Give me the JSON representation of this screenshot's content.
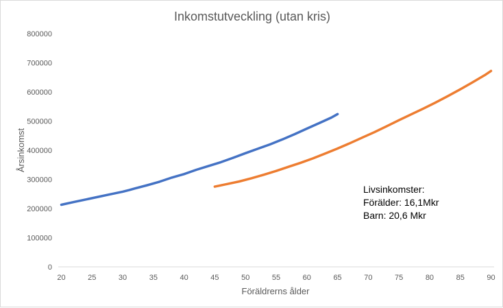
{
  "chart_data": {
    "type": "line",
    "title": "Inkomstutveckling (utan kris)",
    "xlabel": "Föräldrerns ålder",
    "ylabel": "Årsinkomst",
    "xlim": [
      19.5,
      90.5
    ],
    "ylim": [
      0,
      800000
    ],
    "x_ticks": [
      20,
      25,
      30,
      35,
      40,
      45,
      50,
      55,
      60,
      65,
      70,
      75,
      80,
      85,
      90
    ],
    "y_ticks": [
      0,
      100000,
      200000,
      300000,
      400000,
      500000,
      600000,
      700000,
      800000
    ],
    "grid": "none",
    "legend": "none",
    "series": [
      {
        "color": "#4472c4",
        "x": [
          20,
          22,
          24,
          26,
          28,
          30,
          31,
          32,
          34,
          36,
          38,
          40,
          42,
          44,
          46,
          48,
          50,
          52,
          54,
          56,
          58,
          60,
          62,
          64,
          65
        ],
        "y": [
          213000,
          222000,
          231000,
          240000,
          249000,
          258000,
          263000,
          269000,
          280000,
          292000,
          306000,
          318000,
          333000,
          346000,
          359000,
          374000,
          390000,
          405000,
          420000,
          437000,
          455000,
          474000,
          493000,
          512000,
          524000
        ]
      },
      {
        "color": "#ed7d31",
        "x": [
          45,
          47,
          49,
          51,
          53,
          55,
          57,
          59,
          61,
          63,
          65,
          67,
          69,
          71,
          73,
          75,
          77,
          79,
          81,
          83,
          85,
          87,
          89,
          90
        ],
        "y": [
          275000,
          284000,
          293000,
          304000,
          316000,
          329000,
          343000,
          357000,
          372000,
          389000,
          406000,
          424000,
          443000,
          462000,
          482000,
          503000,
          523000,
          543000,
          564000,
          586000,
          609000,
          633000,
          658000,
          672000
        ]
      }
    ]
  },
  "annotation": {
    "line1": "Livsinkomster:",
    "line2": "Förälder: 16,1Mkr",
    "line3": "Barn: 20,6 Mkr"
  }
}
